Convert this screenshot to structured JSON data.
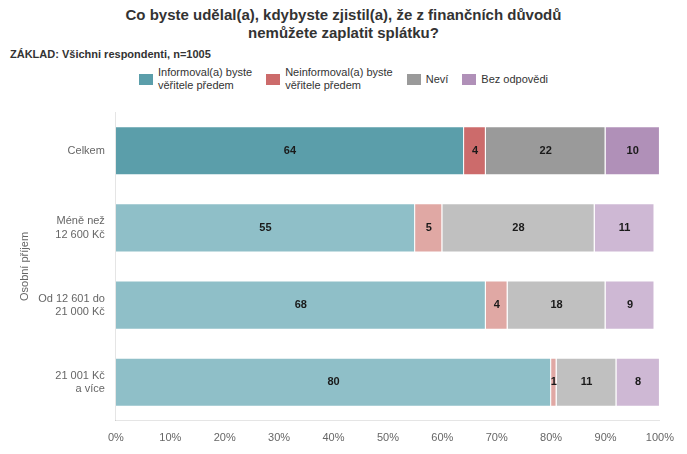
{
  "chart_data": {
    "type": "bar",
    "orientation": "horizontal",
    "stacked": true,
    "title": "Co byste udělal(a), kdybyste zjistil(a), že z finančních důvodů\nnemůžete zaplatit splátku?",
    "annotations": [
      "ZÁKLAD: Všichni respondenti, n=1005"
    ],
    "y_label": "Osobní příjem",
    "categories": [
      "Celkem",
      "Méně než\n12 600 Kč",
      "Od 12 601 do\n21 000 Kč",
      "21 001 Kč\na více"
    ],
    "series": [
      {
        "name": "Informoval(a) byste\nvěřitele předem",
        "color": "#5b9eaa",
        "colors": [
          "#5b9eaa",
          "#8fbfc8",
          "#8fbfc8",
          "#8fbfc8"
        ],
        "values": [
          64,
          55,
          68,
          80
        ]
      },
      {
        "name": "Neinformoval(a) byste\nvěřitele předem",
        "color": "#cc6b6b",
        "colors": [
          "#cc6b6b",
          "#e0a8a4",
          "#e0a8a4",
          "#e0a8a4"
        ],
        "values": [
          4,
          5,
          4,
          1
        ]
      },
      {
        "name": "Neví",
        "color": "#9a9a9a",
        "colors": [
          "#9a9a9a",
          "#c0c0c0",
          "#c0c0c0",
          "#c0c0c0"
        ],
        "values": [
          22,
          28,
          18,
          11
        ]
      },
      {
        "name": "Bez odpovědi",
        "color": "#b090b8",
        "colors": [
          "#b090b8",
          "#ceb8d4",
          "#ceb8d4",
          "#ceb8d4"
        ],
        "values": [
          10,
          11,
          9,
          8
        ]
      }
    ],
    "xlim": [
      0,
      100
    ],
    "xticks": [
      {
        "value": 0,
        "label": "0%"
      },
      {
        "value": 10,
        "label": "10%"
      },
      {
        "value": 20,
        "label": "20%"
      },
      {
        "value": 30,
        "label": "30%"
      },
      {
        "value": 40,
        "label": "40%"
      },
      {
        "value": 50,
        "label": "50%"
      },
      {
        "value": 60,
        "label": "60%"
      },
      {
        "value": 70,
        "label": "70%"
      },
      {
        "value": 80,
        "label": "80%"
      },
      {
        "value": 90,
        "label": "90%"
      },
      {
        "value": 100,
        "label": "100%"
      }
    ],
    "data_labels": true,
    "grid": false,
    "legend": "top"
  }
}
